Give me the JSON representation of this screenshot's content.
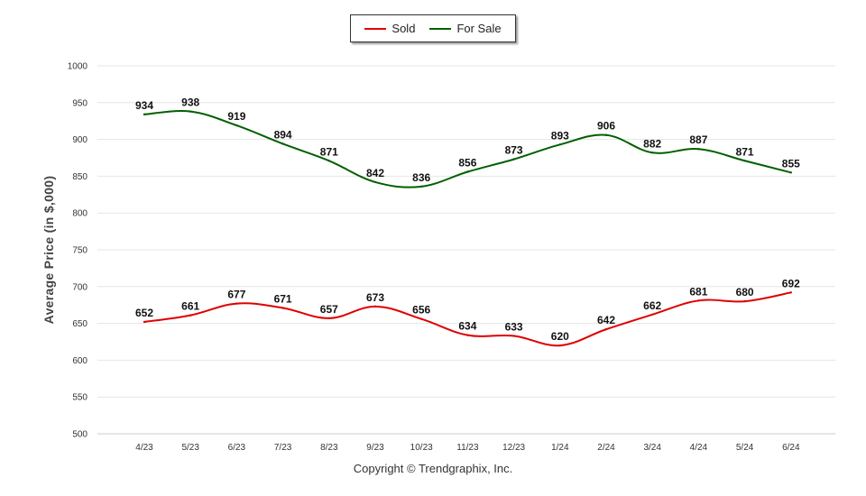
{
  "chart_data": {
    "type": "line",
    "title": "",
    "xlabel": "",
    "ylabel": "Average Price (in $,000)",
    "ylim": [
      500,
      1000
    ],
    "yticks": [
      500,
      550,
      600,
      650,
      700,
      750,
      800,
      850,
      900,
      950,
      1000
    ],
    "grid": true,
    "legend_position": "top-center",
    "categories": [
      "4/23",
      "5/23",
      "6/23",
      "7/23",
      "8/23",
      "9/23",
      "10/23",
      "11/23",
      "12/23",
      "1/24",
      "2/24",
      "3/24",
      "4/24",
      "5/24",
      "6/24"
    ],
    "series": [
      {
        "name": "Sold",
        "color": "#e00000",
        "values": [
          652,
          661,
          677,
          671,
          657,
          673,
          656,
          634,
          633,
          620,
          642,
          662,
          681,
          680,
          692
        ]
      },
      {
        "name": "For Sale",
        "color": "#006000",
        "values": [
          934,
          938,
          919,
          894,
          871,
          842,
          836,
          856,
          873,
          893,
          906,
          882,
          887,
          871,
          855
        ]
      }
    ]
  },
  "footer": {
    "copyright": "Copyright © Trendgraphix, Inc."
  }
}
